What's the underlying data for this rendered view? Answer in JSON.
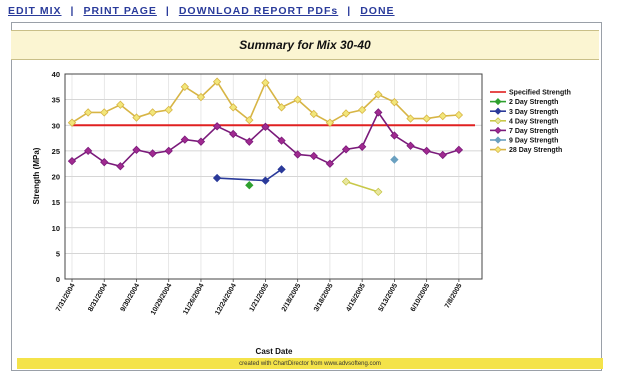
{
  "toolbar": {
    "edit_mix": "EDIT MIX",
    "print_page": "PRINT PAGE",
    "download_report": "DOWNLOAD REPORT PDFs",
    "done": "DONE",
    "separator": "|"
  },
  "summary": {
    "title": "Summary for Mix 30-40"
  },
  "footer": {
    "credit": "created with ChartDirector from www.advsofteng.com"
  },
  "colors": {
    "specified": "#e02020",
    "day2": "#2ea02e",
    "day3": "#2a3a9a",
    "day4": "#c8c848",
    "day7": "#7a1a7a",
    "day9": "#6aa0c0",
    "day28": "#d7b545",
    "marker_fill_28": "#f2e67a",
    "marker_fill_7": "#a02a90",
    "marker_fill_4": "#e8e6a0"
  },
  "chart_data": {
    "type": "line",
    "xlabel": "Cast Date",
    "ylabel": "Strength (MPa)",
    "ylim": [
      0,
      40
    ],
    "yticks": [
      0,
      5,
      10,
      15,
      20,
      25,
      30,
      35,
      40
    ],
    "grid": true,
    "legend_position": "right",
    "categories": [
      "7/31/2004",
      "8/15/2004",
      "8/31/2004",
      "9/14/2004",
      "9/30/2004",
      "10/15/2004",
      "10/29/2004",
      "11/12/2004",
      "11/26/2004",
      "12/10/2004",
      "12/24/2004",
      "1/7/2005",
      "1/21/2005",
      "2/4/2005",
      "2/18/2005",
      "3/4/2005",
      "3/18/2005",
      "4/1/2005",
      "4/15/2005",
      "4/29/2005",
      "5/13/2005",
      "5/27/2005",
      "6/10/2005",
      "6/24/2005",
      "7/8/2005",
      "7/22/2005"
    ],
    "x_tick_labels": [
      "7/31/2004",
      "8/31/2004",
      "9/30/2004",
      "10/29/2004",
      "11/26/2004",
      "12/24/2004",
      "1/21/2005",
      "2/18/2005",
      "3/18/2005",
      "4/15/2005",
      "5/13/2005",
      "6/10/2005",
      "7/8/2005"
    ],
    "series": [
      {
        "name": "Specified Strength",
        "key": "specified",
        "marker": "none",
        "values": [
          30,
          30,
          30,
          30,
          30,
          30,
          30,
          30,
          30,
          30,
          30,
          30,
          30,
          30,
          30,
          30,
          30,
          30,
          30,
          30,
          30,
          30,
          30,
          30,
          30,
          30
        ]
      },
      {
        "name": "2 Day Strength",
        "key": "day2",
        "marker": "diamond",
        "values": [
          null,
          null,
          null,
          null,
          null,
          null,
          null,
          null,
          null,
          null,
          null,
          18.3,
          null,
          null,
          null,
          null,
          null,
          null,
          null,
          null,
          null,
          null,
          null,
          null,
          null,
          null
        ]
      },
      {
        "name": "3 Day Strength",
        "key": "day3",
        "marker": "diamond",
        "values": [
          null,
          null,
          null,
          null,
          null,
          null,
          null,
          null,
          null,
          19.7,
          null,
          null,
          19.2,
          21.4,
          null,
          null,
          null,
          null,
          null,
          null,
          null,
          null,
          null,
          null,
          null,
          null
        ]
      },
      {
        "name": "4 Day Strength",
        "key": "day4",
        "marker": "diamond",
        "values": [
          null,
          null,
          null,
          null,
          null,
          null,
          null,
          null,
          null,
          null,
          null,
          null,
          null,
          null,
          null,
          null,
          null,
          19.0,
          null,
          17.0,
          null,
          null,
          null,
          null,
          null,
          null
        ]
      },
      {
        "name": "7 Day Strength",
        "key": "day7",
        "marker": "diamond",
        "values": [
          23.0,
          25.0,
          22.8,
          22.0,
          25.2,
          24.5,
          25.0,
          27.2,
          26.8,
          29.8,
          28.3,
          26.8,
          29.7,
          27.0,
          24.3,
          24.0,
          22.5,
          25.3,
          25.8,
          32.5,
          28.0,
          26.0,
          25.0,
          24.2,
          25.2,
          null
        ]
      },
      {
        "name": "9 Day Strength",
        "key": "day9",
        "marker": "diamond",
        "values": [
          null,
          null,
          null,
          null,
          null,
          null,
          null,
          null,
          null,
          null,
          null,
          null,
          null,
          null,
          null,
          null,
          null,
          null,
          null,
          null,
          23.3,
          null,
          null,
          null,
          null,
          null
        ]
      },
      {
        "name": "28 Day Strength",
        "key": "day28",
        "marker": "diamond",
        "values": [
          30.5,
          32.5,
          32.5,
          34.0,
          31.5,
          32.5,
          33.0,
          37.5,
          35.5,
          38.5,
          33.5,
          31.0,
          38.3,
          33.5,
          35.0,
          32.2,
          30.5,
          32.3,
          33.0,
          36.0,
          34.5,
          31.3,
          31.3,
          31.8,
          32.0,
          null
        ]
      }
    ]
  }
}
